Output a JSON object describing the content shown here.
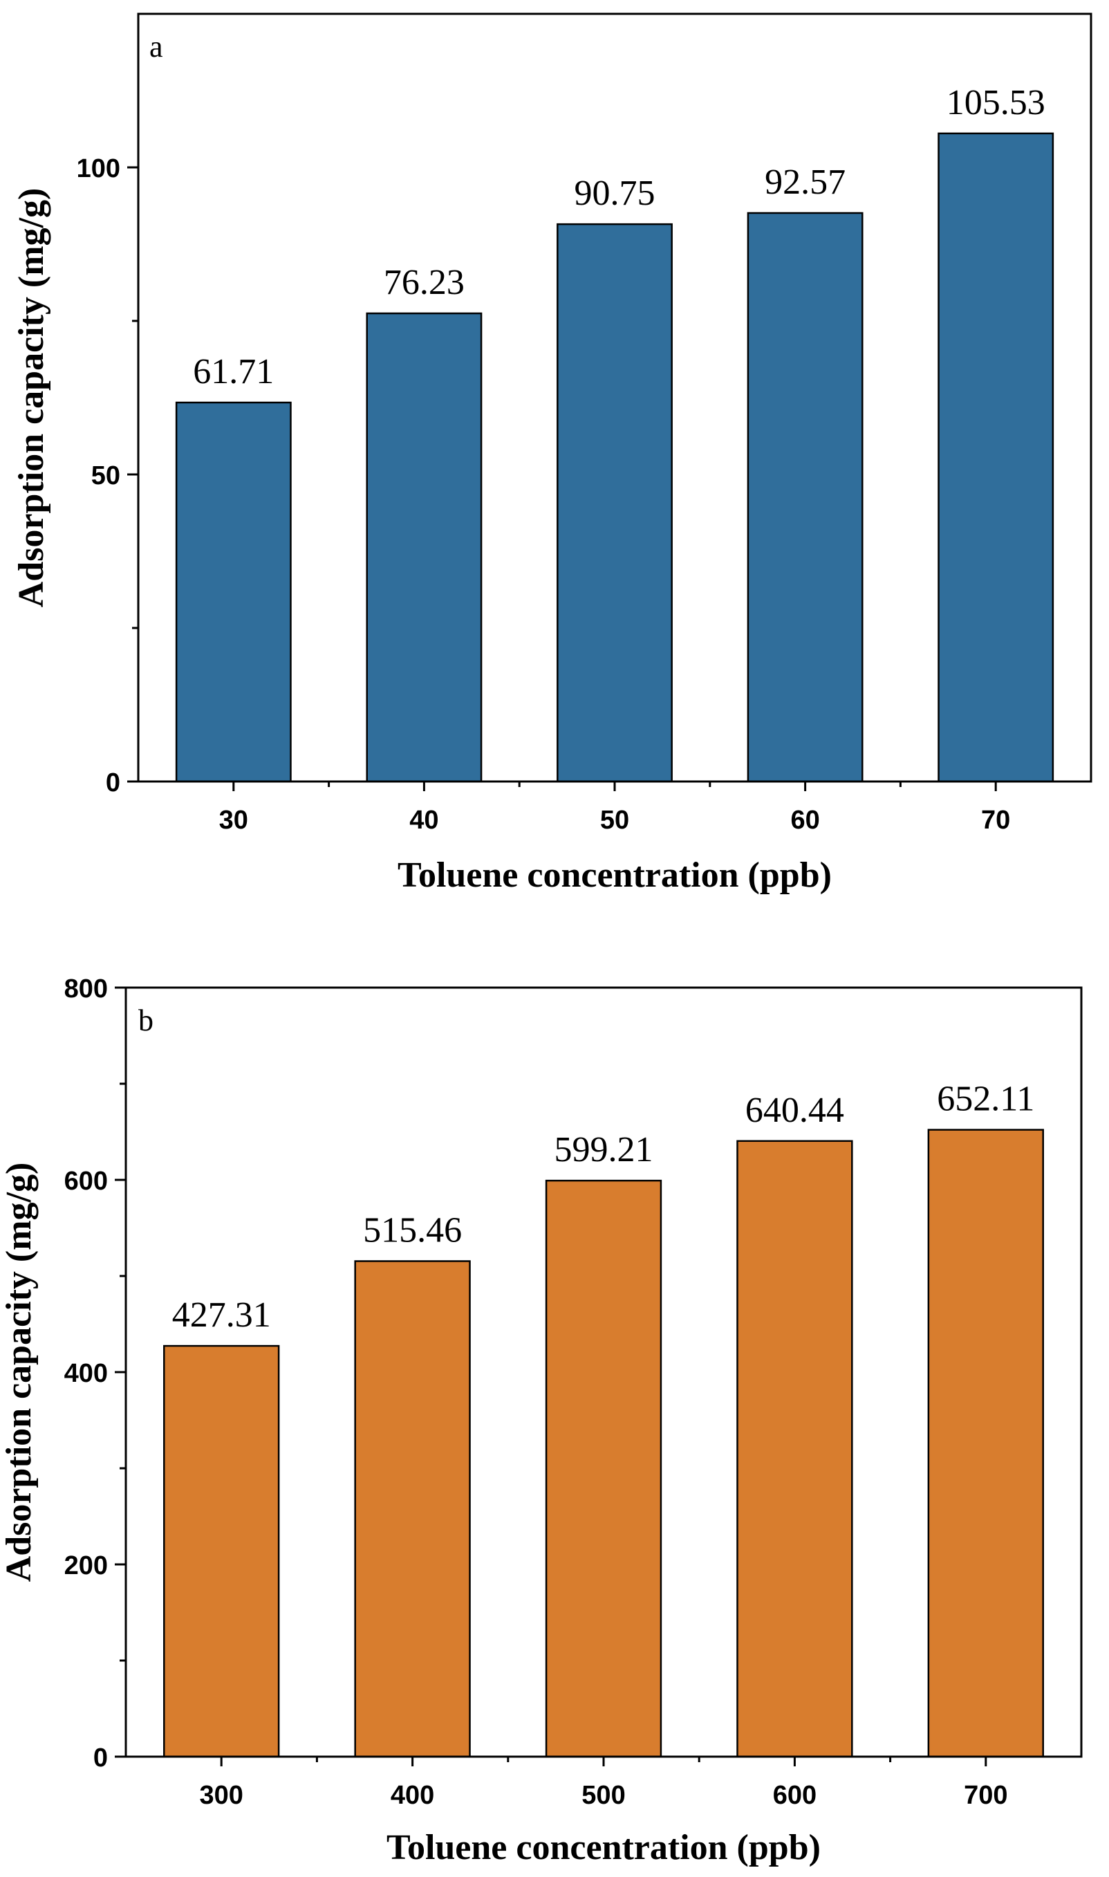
{
  "chart_data": [
    {
      "type": "bar",
      "panel_label": "a",
      "categories": [
        "30",
        "40",
        "50",
        "60",
        "70"
      ],
      "values": [
        61.71,
        76.23,
        90.75,
        92.57,
        105.53
      ],
      "data_labels": [
        "61.71",
        "76.23",
        "90.75",
        "92.57",
        "105.53"
      ],
      "xlabel": "Toluene concentration (ppb)",
      "ylabel": "Adsorption capacity (mg/g)",
      "ylim": [
        0,
        125
      ],
      "yticks": [
        0,
        50,
        100
      ],
      "yticks_minor": [
        25,
        75
      ],
      "grid": false,
      "bar_color": "#306e9b"
    },
    {
      "type": "bar",
      "panel_label": "b",
      "categories": [
        "300",
        "400",
        "500",
        "600",
        "700"
      ],
      "values": [
        427.31,
        515.46,
        599.21,
        640.44,
        652.11
      ],
      "data_labels": [
        "427.31",
        "515.46",
        "599.21",
        "640.44",
        "652.11"
      ],
      "xlabel": "Toluene concentration (ppb)",
      "ylabel": "Adsorption capacity (mg/g)",
      "ylim": [
        0,
        800
      ],
      "yticks": [
        0,
        200,
        400,
        600,
        800
      ],
      "yticks_minor": [
        100,
        300,
        500,
        700
      ],
      "grid": false,
      "bar_color": "#d87d2e"
    }
  ]
}
